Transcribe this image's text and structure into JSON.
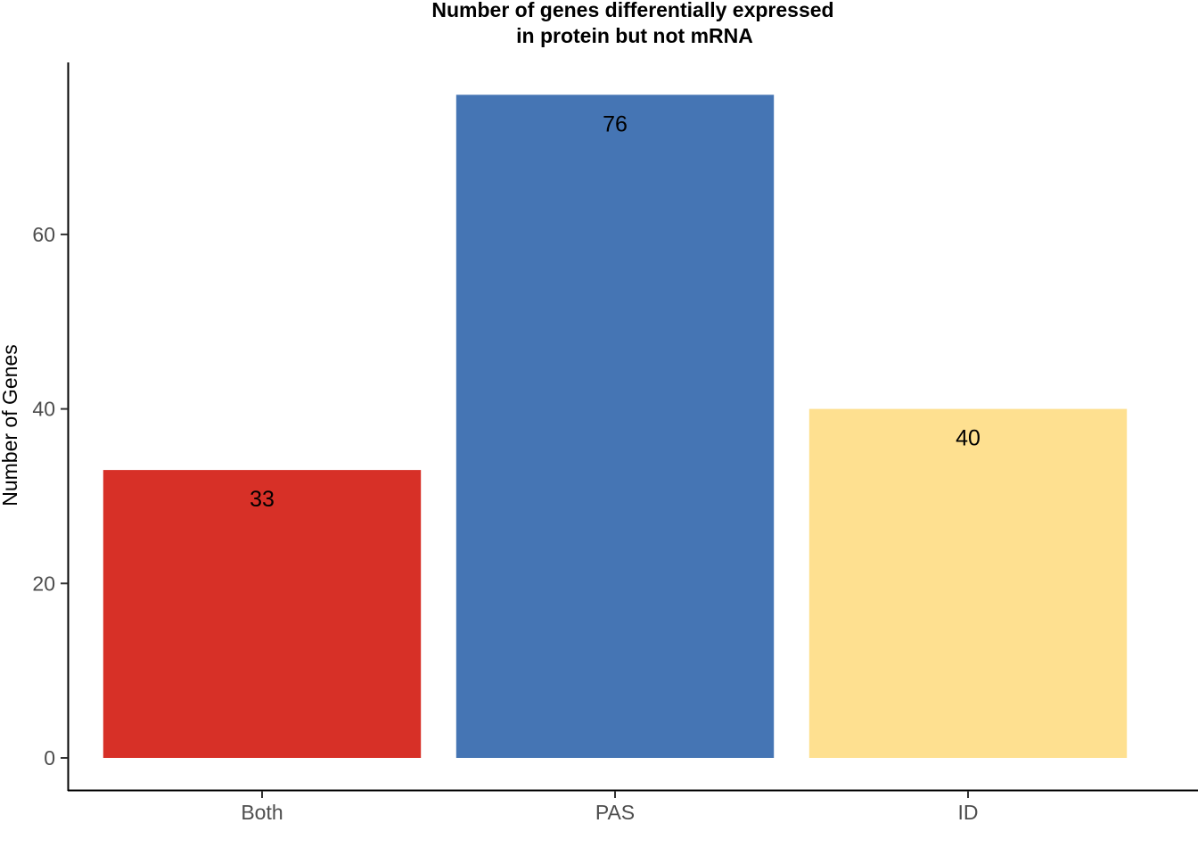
{
  "chart_data": {
    "type": "bar",
    "title_lines": [
      "Number of genes differentially expressed",
      "in protein but not mRNA"
    ],
    "xlabel": "",
    "ylabel": "Number of Genes",
    "categories": [
      "Both",
      "PAS",
      "ID"
    ],
    "values": [
      33,
      76,
      40
    ],
    "data_labels": [
      "33",
      "76",
      "40"
    ],
    "colors": [
      "#d73027",
      "#4575b4",
      "#fee090"
    ],
    "ylim": [
      0,
      79.6
    ],
    "yticks": [
      0,
      20,
      40,
      60
    ],
    "ytick_labels": [
      "0",
      "20",
      "40",
      "60"
    ],
    "grid": false,
    "legend": "none"
  }
}
